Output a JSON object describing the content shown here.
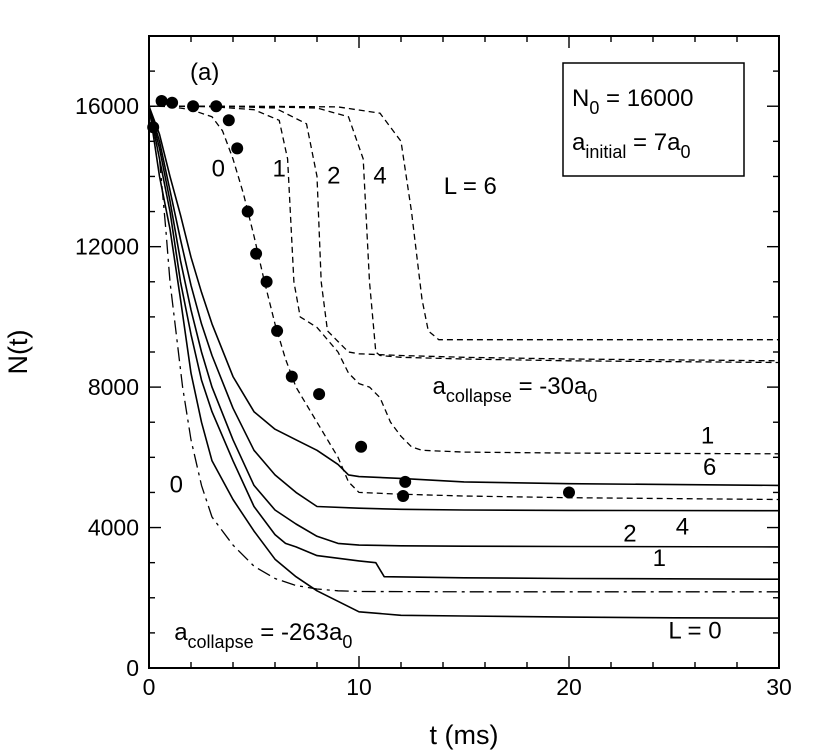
{
  "chart_data": {
    "type": "line",
    "panel_label": "(a)",
    "xlabel": "t (ms)",
    "ylabel": "N(t)",
    "xlim": [
      0,
      30
    ],
    "ylim": [
      0,
      18000
    ],
    "x_ticks": [
      0,
      10,
      20,
      30
    ],
    "y_ticks": [
      0,
      4000,
      8000,
      12000,
      16000
    ],
    "x_tick_labels": [
      "0",
      "10",
      "20",
      "30"
    ],
    "y_tick_labels": [
      "0",
      "4000",
      "8000",
      "12000",
      "16000"
    ],
    "grid": false,
    "legend_box": {
      "n0_main": "N",
      "n0_sub": "0",
      "n0_value": " = 16000",
      "a_main": "a",
      "a_sub": "initial",
      "a_value": " = 7a",
      "a_value_sub": "0"
    },
    "series": [
      {
        "name": "L = 0 (a_collapse = -263a0)",
        "style": "solid",
        "x": [
          0,
          0.5,
          1,
          1.5,
          2,
          2.5,
          3,
          4,
          5,
          6,
          7,
          8,
          9,
          10,
          12,
          15,
          20,
          25,
          30
        ],
        "y": [
          16000,
          14000,
          12500,
          10500,
          8400,
          7000,
          5900,
          4800,
          3900,
          3100,
          2600,
          2200,
          1900,
          1600,
          1500,
          1480,
          1450,
          1430,
          1420
        ]
      },
      {
        "name": "L = 1 (a_collapse = -263a0)",
        "style": "solid",
        "x": [
          0,
          0.5,
          1,
          1.5,
          2,
          2.5,
          3,
          4,
          5,
          6,
          6.5,
          7,
          8,
          10,
          10.8,
          11.2,
          15,
          20,
          30
        ],
        "y": [
          16000,
          14500,
          13000,
          11000,
          9500,
          8200,
          7300,
          5900,
          4600,
          3800,
          3550,
          3450,
          3200,
          3050,
          3000,
          2600,
          2570,
          2550,
          2530
        ]
      },
      {
        "name": "L = 2 (a_collapse = -263a0)",
        "style": "solid",
        "x": [
          0,
          0.5,
          1,
          1.5,
          2,
          2.5,
          3,
          4,
          5,
          6,
          7,
          8,
          9,
          10,
          12,
          15,
          20,
          30
        ],
        "y": [
          16000,
          14800,
          13300,
          11600,
          10200,
          9000,
          8000,
          6500,
          5200,
          4500,
          4100,
          3750,
          3550,
          3500,
          3480,
          3470,
          3460,
          3450
        ]
      },
      {
        "name": "L = 4 (a_collapse = -263a0)",
        "style": "solid",
        "x": [
          0,
          0.5,
          1,
          1.5,
          2,
          2.5,
          3,
          4,
          5,
          6,
          7,
          8,
          10,
          12,
          15,
          20,
          30
        ],
        "y": [
          16000,
          15000,
          13600,
          12200,
          10900,
          9800,
          8900,
          7400,
          6200,
          5500,
          5000,
          4600,
          4550,
          4520,
          4500,
          4490,
          4480
        ]
      },
      {
        "name": "L = 6 (a_collapse = -263a0)",
        "style": "solid",
        "x": [
          0,
          0.5,
          1,
          1.5,
          2,
          2.5,
          3,
          4,
          5,
          6,
          7,
          8,
          9,
          9.5,
          10,
          12,
          15,
          20,
          30
        ],
        "y": [
          16000,
          15200,
          14000,
          12900,
          11700,
          10700,
          9800,
          8300,
          7300,
          6800,
          6500,
          6200,
          5800,
          5500,
          5450,
          5400,
          5300,
          5250,
          5200
        ]
      },
      {
        "name": "L = 0 (a_collapse = -30a0)",
        "style": "dashed",
        "x": [
          0,
          1,
          2,
          3,
          3.5,
          4,
          4.5,
          5,
          5.5,
          6,
          6.5,
          7,
          8,
          9,
          9.5,
          10,
          12,
          15,
          20,
          30
        ],
        "y": [
          16000,
          15990,
          15900,
          15700,
          15300,
          14500,
          13500,
          12300,
          11000,
          9800,
          8800,
          8000,
          7000,
          6000,
          5300,
          5000,
          4950,
          4900,
          4850,
          4800
        ]
      },
      {
        "name": "L = 1 (a_collapse = -30a0)",
        "style": "dashed",
        "x": [
          0,
          3,
          5,
          6.2,
          6.6,
          6.9,
          7.2,
          8,
          9,
          9.5,
          10,
          10.5,
          11,
          11.5,
          12,
          12.5,
          13,
          15,
          20,
          30
        ],
        "y": [
          16000,
          15990,
          15900,
          15600,
          14500,
          11000,
          10000,
          9700,
          9000,
          8400,
          8100,
          8000,
          7700,
          7000,
          6600,
          6300,
          6200,
          6150,
          6120,
          6100
        ]
      },
      {
        "name": "L = 2 (a_collapse = -30a0)",
        "style": "dashed",
        "x": [
          0,
          4,
          6,
          7.5,
          8,
          8.2,
          8.5,
          9,
          9.5,
          10,
          12,
          15,
          20,
          30
        ],
        "y": [
          16000,
          15990,
          15950,
          15500,
          14000,
          11000,
          9600,
          9300,
          9000,
          8950,
          8900,
          8850,
          8800,
          8750
        ]
      },
      {
        "name": "L = 4 (a_collapse = -30a0)",
        "style": "dashed",
        "x": [
          0,
          5,
          8,
          9.5,
          10.2,
          10.5,
          10.8,
          11,
          12,
          15,
          20,
          30
        ],
        "y": [
          16000,
          15995,
          15950,
          15700,
          14500,
          11000,
          9000,
          8900,
          8850,
          8800,
          8750,
          8700
        ]
      },
      {
        "name": "L = 6 (a_collapse = -30a0)",
        "style": "dashed",
        "x": [
          0,
          6,
          9,
          11,
          12,
          12.5,
          13,
          13.3,
          13.8,
          15,
          20,
          30
        ],
        "y": [
          16000,
          15995,
          15980,
          15800,
          15000,
          13000,
          10500,
          9600,
          9350,
          9350,
          9350,
          9350
        ]
      },
      {
        "name": "L = 0 (a_collapse = -263a0), chain line",
        "style": "dashdot",
        "x": [
          0,
          0.5,
          0.8,
          1,
          1.3,
          1.6,
          2,
          2.5,
          3,
          4,
          5,
          6,
          7,
          8,
          9,
          10,
          15,
          20,
          30
        ],
        "y": [
          16000,
          14500,
          12500,
          11000,
          9500,
          8000,
          6500,
          5200,
          4300,
          3500,
          2900,
          2550,
          2350,
          2250,
          2200,
          2180,
          2170,
          2170,
          2170
        ]
      }
    ],
    "points": {
      "name": "experiment",
      "x": [
        0.2,
        0.6,
        1.1,
        2.1,
        3.2,
        3.8,
        4.2,
        4.7,
        5.1,
        5.6,
        6.1,
        6.8,
        8.1,
        10.1,
        12.1,
        12.2,
        20.0
      ],
      "y": [
        15400,
        16150,
        16100,
        16000,
        16000,
        15600,
        14800,
        13000,
        11800,
        11000,
        9600,
        8300,
        7800,
        6300,
        4900,
        5300,
        5000
      ]
    },
    "annotations": {
      "dashed_L_labels": [
        {
          "text": "0",
          "x": 3.3,
          "y": 14000
        },
        {
          "text": "1",
          "x": 6.2,
          "y": 14000
        },
        {
          "text": "2",
          "x": 8.8,
          "y": 13800
        },
        {
          "text": "4",
          "x": 11.0,
          "y": 13800
        },
        {
          "text": "L = 6",
          "x": 15.3,
          "y": 13500
        }
      ],
      "solid_L_labels": [
        {
          "text": "1",
          "x": 26.6,
          "y": 6400
        },
        {
          "text": "6",
          "x": 26.7,
          "y": 5500
        },
        {
          "text": "4",
          "x": 25.4,
          "y": 3800
        },
        {
          "text": "2",
          "x": 22.9,
          "y": 3600
        },
        {
          "text": "1",
          "x": 24.3,
          "y": 2900
        },
        {
          "text": "L = 0",
          "x": 26.0,
          "y": 840
        }
      ],
      "dashdot_label": {
        "text": "0",
        "x": 1.3,
        "y": 5000
      },
      "collapse_30": {
        "main": "a",
        "sub": "collapse",
        "rest": " = -30a",
        "rest_sub": "0",
        "x": 13.5,
        "y": 7800
      },
      "collapse_263": {
        "main": "a",
        "sub": "collapse",
        "rest": " = -263a",
        "rest_sub": "0",
        "x": 1.2,
        "y": 800
      }
    }
  }
}
